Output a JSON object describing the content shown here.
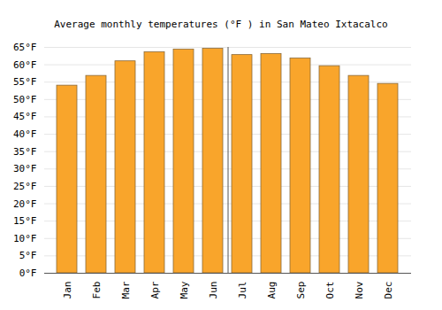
{
  "chart_data": {
    "type": "bar",
    "title": "Average monthly temperatures (°F ) in San Mateo Ixtacalco",
    "categories": [
      "Jan",
      "Feb",
      "Mar",
      "Apr",
      "May",
      "Jun",
      "Jul",
      "Aug",
      "Sep",
      "Oct",
      "Nov",
      "Dec"
    ],
    "values": [
      54,
      56.8,
      61,
      63.6,
      64.4,
      64.6,
      62.8,
      63.1,
      61.8,
      59.6,
      56.8,
      54.5
    ],
    "color": "#f9a52b",
    "ylim": [
      0,
      65
    ],
    "yticks": [
      {
        "value": 0,
        "label": "0°F"
      },
      {
        "value": 5,
        "label": "5°F"
      },
      {
        "value": 10,
        "label": "10°F"
      },
      {
        "value": 15,
        "label": "15°F"
      },
      {
        "value": 20,
        "label": "20°F"
      },
      {
        "value": 25,
        "label": "25°F"
      },
      {
        "value": 30,
        "label": "30°F"
      },
      {
        "value": 35,
        "label": "35°F"
      },
      {
        "value": 40,
        "label": "40°F"
      },
      {
        "value": 45,
        "label": "45°F"
      },
      {
        "value": 50,
        "label": "50°F"
      },
      {
        "value": 55,
        "label": "55°F"
      },
      {
        "value": 60,
        "label": "60°F"
      },
      {
        "value": 65,
        "label": "65°F"
      }
    ],
    "grid": true
  }
}
